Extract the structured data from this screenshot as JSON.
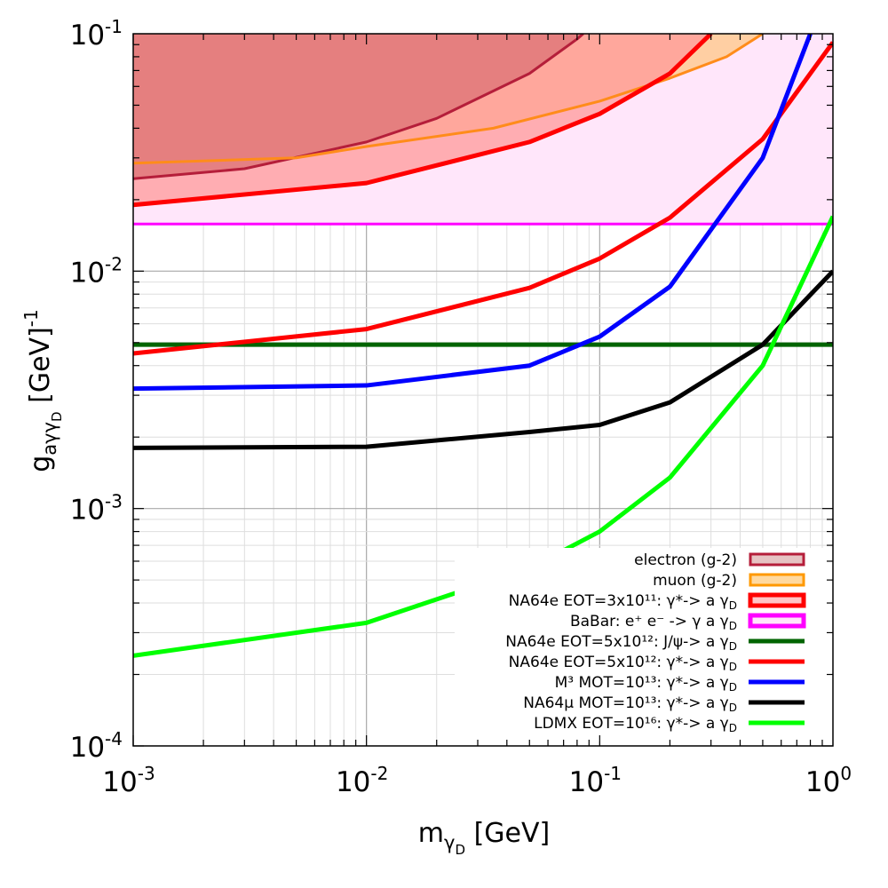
{
  "chart_data": {
    "type": "line",
    "xscale": "log",
    "yscale": "log",
    "xlim": [
      0.001,
      1
    ],
    "ylim": [
      0.0001,
      0.1
    ],
    "grid": true,
    "legend_position": "bottom-right",
    "xlabel": {
      "base": "m",
      "sub": "γ",
      "subsub": "D",
      "rest": " [GeV]"
    },
    "ylabel": {
      "base": "g",
      "sub": "aγγ",
      "subsub": "D",
      "rest": " [GeV]",
      "sup": "-1"
    },
    "x_ticks": [
      {
        "value": 0.001,
        "base": "10",
        "exp": "-3"
      },
      {
        "value": 0.01,
        "base": "10",
        "exp": "-2"
      },
      {
        "value": 0.1,
        "base": "10",
        "exp": "-1"
      },
      {
        "value": 1,
        "base": "10",
        "exp": "0"
      }
    ],
    "y_ticks": [
      {
        "value": 0.0001,
        "base": "10",
        "exp": "-4"
      },
      {
        "value": 0.001,
        "base": "10",
        "exp": "-3"
      },
      {
        "value": 0.01,
        "base": "10",
        "exp": "-2"
      },
      {
        "value": 0.1,
        "base": "10",
        "exp": "-1"
      }
    ],
    "exclusion_regions": [
      {
        "name": "babar-region",
        "fill": "#ffe6fa",
        "boundary": [
          [
            0.001,
            0.0158
          ],
          [
            1,
            0.0158
          ]
        ]
      },
      {
        "name": "muon-g2-region",
        "fill": "#ffcfa3",
        "boundary": [
          [
            0.001,
            0.0285
          ],
          [
            0.005,
            0.03
          ],
          [
            0.01,
            0.0335
          ],
          [
            0.035,
            0.04
          ],
          [
            0.1,
            0.052
          ],
          [
            0.2,
            0.065
          ],
          [
            0.35,
            0.08
          ],
          [
            0.5,
            0.1
          ]
        ]
      },
      {
        "name": "na64e-visible-region",
        "fill": "#ff9999",
        "opacity": 0.75,
        "boundary": [
          [
            0.001,
            0.019
          ],
          [
            0.01,
            0.0235
          ],
          [
            0.05,
            0.035
          ],
          [
            0.1,
            0.046
          ],
          [
            0.2,
            0.068
          ],
          [
            0.3,
            0.1
          ]
        ]
      },
      {
        "name": "electron-g2-region",
        "fill": "#e0787a",
        "opacity": 0.85,
        "boundary": [
          [
            0.001,
            0.0245
          ],
          [
            0.003,
            0.027
          ],
          [
            0.01,
            0.035
          ],
          [
            0.02,
            0.044
          ],
          [
            0.05,
            0.068
          ],
          [
            0.08,
            0.095
          ],
          [
            0.085,
            0.1
          ]
        ]
      }
    ],
    "series": [
      {
        "name": "electron-g2-line",
        "color": "#b51e3a",
        "width": 3,
        "points": [
          [
            0.001,
            0.0245
          ],
          [
            0.003,
            0.027
          ],
          [
            0.01,
            0.035
          ],
          [
            0.02,
            0.044
          ],
          [
            0.05,
            0.068
          ],
          [
            0.08,
            0.095
          ],
          [
            0.085,
            0.1
          ]
        ]
      },
      {
        "name": "muon-g2-line",
        "color": "#ff8c1a",
        "width": 3,
        "points": [
          [
            0.001,
            0.0285
          ],
          [
            0.005,
            0.03
          ],
          [
            0.01,
            0.0335
          ],
          [
            0.035,
            0.04
          ],
          [
            0.1,
            0.052
          ],
          [
            0.2,
            0.065
          ],
          [
            0.35,
            0.08
          ],
          [
            0.5,
            0.1
          ]
        ]
      },
      {
        "name": "na64e-3e11-line",
        "color": "#ff0000",
        "width": 5,
        "points": [
          [
            0.001,
            0.019
          ],
          [
            0.01,
            0.0235
          ],
          [
            0.05,
            0.035
          ],
          [
            0.1,
            0.046
          ],
          [
            0.2,
            0.068
          ],
          [
            0.3,
            0.1
          ]
        ]
      },
      {
        "name": "babar-line",
        "color": "#ff00ff",
        "width": 3,
        "points": [
          [
            0.001,
            0.0158
          ],
          [
            1,
            0.0158
          ]
        ]
      },
      {
        "name": "na64e-jpsi-line",
        "color": "#006400",
        "width": 5,
        "points": [
          [
            0.001,
            0.0049
          ],
          [
            1,
            0.0049
          ]
        ]
      },
      {
        "name": "na64e-5e12-line",
        "color": "#ff0000",
        "width": 5,
        "points": [
          [
            0.001,
            0.0045
          ],
          [
            0.01,
            0.0057
          ],
          [
            0.05,
            0.0085
          ],
          [
            0.1,
            0.0113
          ],
          [
            0.2,
            0.0168
          ],
          [
            0.5,
            0.036
          ],
          [
            1,
            0.092
          ]
        ]
      },
      {
        "name": "m3-line",
        "color": "#0000ff",
        "width": 5,
        "points": [
          [
            0.001,
            0.0032
          ],
          [
            0.01,
            0.0033
          ],
          [
            0.05,
            0.004
          ],
          [
            0.1,
            0.0053
          ],
          [
            0.2,
            0.0086
          ],
          [
            0.5,
            0.03
          ],
          [
            0.8,
            0.1
          ]
        ]
      },
      {
        "name": "na64mu-line",
        "color": "#000000",
        "width": 5,
        "points": [
          [
            0.001,
            0.0018
          ],
          [
            0.01,
            0.00182
          ],
          [
            0.05,
            0.0021
          ],
          [
            0.1,
            0.00225
          ],
          [
            0.2,
            0.0028
          ],
          [
            0.5,
            0.0049
          ],
          [
            1,
            0.01
          ]
        ]
      },
      {
        "name": "ldmx-line",
        "color": "#00ff00",
        "width": 5,
        "points": [
          [
            0.001,
            0.00024
          ],
          [
            0.01,
            0.00033
          ],
          [
            0.05,
            0.00056
          ],
          [
            0.1,
            0.0008
          ],
          [
            0.2,
            0.00135
          ],
          [
            0.5,
            0.004
          ],
          [
            1,
            0.017
          ]
        ]
      }
    ],
    "legend": [
      {
        "text": "electron (g-2)",
        "kind": "box",
        "stroke": "#b51e3a",
        "fill": "#e6c3c3",
        "stroke_width": 3
      },
      {
        "text": "muon (g-2)",
        "kind": "box",
        "stroke": "#ff9900",
        "fill": "#ffd9a0",
        "stroke_width": 3
      },
      {
        "text": "NA64e EOT=3x10¹¹: γ*-> a γD",
        "kind": "box",
        "stroke": "#ff0000",
        "fill": "#ffc6c6",
        "stroke_width": 5
      },
      {
        "text": "BaBar: e⁺ e⁻ -> γ a γD",
        "kind": "box",
        "stroke": "#ff00ff",
        "fill": "#ffe6fa",
        "stroke_width": 5
      },
      {
        "text": "NA64e EOT=5x10¹²: J/ψ-> a γD",
        "kind": "line",
        "stroke": "#006400",
        "stroke_width": 5
      },
      {
        "text": "NA64e EOT=5x10¹²: γ*-> a γD",
        "kind": "line",
        "stroke": "#ff0000",
        "stroke_width": 5
      },
      {
        "text": "M³ MOT=10¹³: γ*-> a γD",
        "kind": "line",
        "stroke": "#0000ff",
        "stroke_width": 5
      },
      {
        "text": "NA64μ MOT=10¹³: γ*-> a γD",
        "kind": "line",
        "stroke": "#000000",
        "stroke_width": 5
      },
      {
        "text": "LDMX EOT=10¹⁶: γ*-> a γD",
        "kind": "line",
        "stroke": "#00ff00",
        "stroke_width": 5
      }
    ]
  }
}
